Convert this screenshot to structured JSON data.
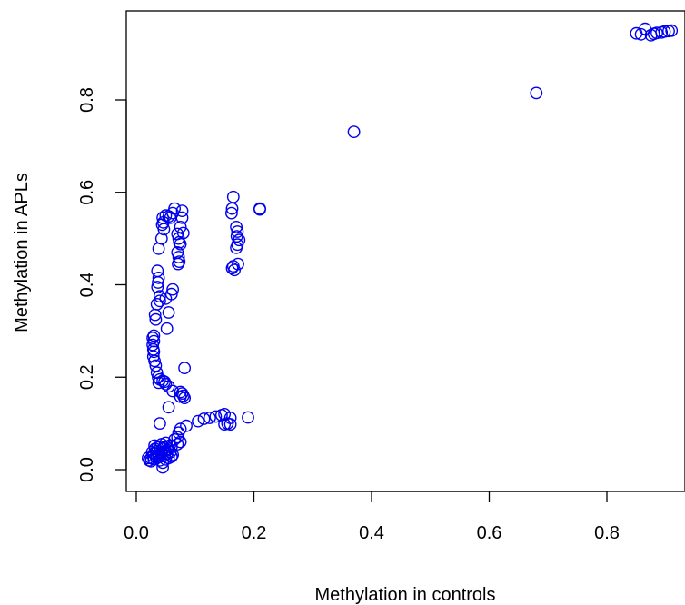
{
  "chart_data": {
    "type": "scatter",
    "title": "",
    "xlabel": "Methylation in controls",
    "ylabel": "Methylation in APLs",
    "xlim": [
      0.0,
      0.92
    ],
    "ylim": [
      -0.01,
      0.98
    ],
    "x_ticks": [
      0.0,
      0.2,
      0.4,
      0.6,
      0.8
    ],
    "x_tick_labels": [
      "0.0",
      "0.2",
      "0.4",
      "0.6",
      "0.8"
    ],
    "y_ticks": [
      0.0,
      0.2,
      0.4,
      0.6,
      0.8
    ],
    "y_tick_labels": [
      "0.0",
      "0.2",
      "0.4",
      "0.6",
      "0.8"
    ],
    "grid": false,
    "marker": "open-circle",
    "point_color": "#0000ee",
    "series": [
      {
        "points": [
          [
            0.865,
            0.954
          ],
          [
            0.85,
            0.944
          ],
          [
            0.858,
            0.942
          ],
          [
            0.875,
            0.94
          ],
          [
            0.88,
            0.943
          ],
          [
            0.885,
            0.945
          ],
          [
            0.893,
            0.946
          ],
          [
            0.898,
            0.948
          ],
          [
            0.905,
            0.949
          ],
          [
            0.91,
            0.95
          ],
          [
            0.68,
            0.815
          ],
          [
            0.37,
            0.731
          ],
          [
            0.165,
            0.59
          ],
          [
            0.163,
            0.565
          ],
          [
            0.162,
            0.555
          ],
          [
            0.21,
            0.565
          ],
          [
            0.21,
            0.563
          ],
          [
            0.17,
            0.525
          ],
          [
            0.172,
            0.515
          ],
          [
            0.171,
            0.505
          ],
          [
            0.175,
            0.497
          ],
          [
            0.172,
            0.487
          ],
          [
            0.17,
            0.48
          ],
          [
            0.173,
            0.445
          ],
          [
            0.165,
            0.44
          ],
          [
            0.163,
            0.436
          ],
          [
            0.167,
            0.432
          ],
          [
            0.065,
            0.565
          ],
          [
            0.045,
            0.545
          ],
          [
            0.05,
            0.55
          ],
          [
            0.055,
            0.548
          ],
          [
            0.058,
            0.545
          ],
          [
            0.062,
            0.555
          ],
          [
            0.046,
            0.535
          ],
          [
            0.044,
            0.53
          ],
          [
            0.047,
            0.52
          ],
          [
            0.043,
            0.5
          ],
          [
            0.038,
            0.478
          ],
          [
            0.078,
            0.56
          ],
          [
            0.078,
            0.545
          ],
          [
            0.075,
            0.525
          ],
          [
            0.08,
            0.512
          ],
          [
            0.07,
            0.51
          ],
          [
            0.072,
            0.5
          ],
          [
            0.073,
            0.492
          ],
          [
            0.075,
            0.488
          ],
          [
            0.07,
            0.47
          ],
          [
            0.072,
            0.46
          ],
          [
            0.073,
            0.45
          ],
          [
            0.071,
            0.445
          ],
          [
            0.036,
            0.43
          ],
          [
            0.038,
            0.415
          ],
          [
            0.037,
            0.405
          ],
          [
            0.036,
            0.395
          ],
          [
            0.062,
            0.39
          ],
          [
            0.06,
            0.38
          ],
          [
            0.05,
            0.37
          ],
          [
            0.04,
            0.375
          ],
          [
            0.04,
            0.365
          ],
          [
            0.035,
            0.358
          ],
          [
            0.055,
            0.34
          ],
          [
            0.032,
            0.335
          ],
          [
            0.033,
            0.325
          ],
          [
            0.052,
            0.305
          ],
          [
            0.03,
            0.29
          ],
          [
            0.028,
            0.285
          ],
          [
            0.03,
            0.278
          ],
          [
            0.028,
            0.27
          ],
          [
            0.029,
            0.26
          ],
          [
            0.03,
            0.255
          ],
          [
            0.029,
            0.245
          ],
          [
            0.031,
            0.235
          ],
          [
            0.033,
            0.225
          ],
          [
            0.035,
            0.21
          ],
          [
            0.037,
            0.2
          ],
          [
            0.04,
            0.195
          ],
          [
            0.045,
            0.192
          ],
          [
            0.048,
            0.19
          ],
          [
            0.038,
            0.188
          ],
          [
            0.05,
            0.185
          ],
          [
            0.055,
            0.18
          ],
          [
            0.082,
            0.22
          ],
          [
            0.062,
            0.17
          ],
          [
            0.075,
            0.168
          ],
          [
            0.078,
            0.165
          ],
          [
            0.08,
            0.16
          ],
          [
            0.075,
            0.158
          ],
          [
            0.082,
            0.155
          ],
          [
            0.055,
            0.135
          ],
          [
            0.19,
            0.113
          ],
          [
            0.16,
            0.112
          ],
          [
            0.15,
            0.12
          ],
          [
            0.145,
            0.118
          ],
          [
            0.135,
            0.115
          ],
          [
            0.125,
            0.112
          ],
          [
            0.115,
            0.11
          ],
          [
            0.105,
            0.105
          ],
          [
            0.155,
            0.1
          ],
          [
            0.15,
            0.098
          ],
          [
            0.16,
            0.098
          ],
          [
            0.085,
            0.095
          ],
          [
            0.075,
            0.088
          ],
          [
            0.072,
            0.08
          ],
          [
            0.04,
            0.1
          ],
          [
            0.07,
            0.07
          ],
          [
            0.065,
            0.065
          ],
          [
            0.075,
            0.06
          ],
          [
            0.07,
            0.055
          ],
          [
            0.06,
            0.05
          ],
          [
            0.055,
            0.045
          ],
          [
            0.05,
            0.04
          ],
          [
            0.045,
            0.045
          ],
          [
            0.04,
            0.05
          ],
          [
            0.035,
            0.04
          ],
          [
            0.032,
            0.045
          ],
          [
            0.03,
            0.035
          ],
          [
            0.028,
            0.03
          ],
          [
            0.025,
            0.025
          ],
          [
            0.022,
            0.02
          ],
          [
            0.02,
            0.025
          ],
          [
            0.025,
            0.018
          ],
          [
            0.03,
            0.022
          ],
          [
            0.035,
            0.025
          ],
          [
            0.04,
            0.02
          ],
          [
            0.045,
            0.015
          ],
          [
            0.045,
            0.005
          ],
          [
            0.05,
            0.022
          ],
          [
            0.055,
            0.025
          ],
          [
            0.06,
            0.028
          ],
          [
            0.038,
            0.032
          ],
          [
            0.042,
            0.036
          ],
          [
            0.048,
            0.03
          ],
          [
            0.052,
            0.034
          ],
          [
            0.058,
            0.038
          ],
          [
            0.033,
            0.028
          ],
          [
            0.027,
            0.038
          ],
          [
            0.043,
            0.055
          ],
          [
            0.05,
            0.058
          ],
          [
            0.057,
            0.052
          ],
          [
            0.062,
            0.032
          ],
          [
            0.036,
            0.048
          ],
          [
            0.031,
            0.052
          ],
          [
            0.047,
            0.048
          ],
          [
            0.053,
            0.042
          ]
        ]
      }
    ]
  }
}
